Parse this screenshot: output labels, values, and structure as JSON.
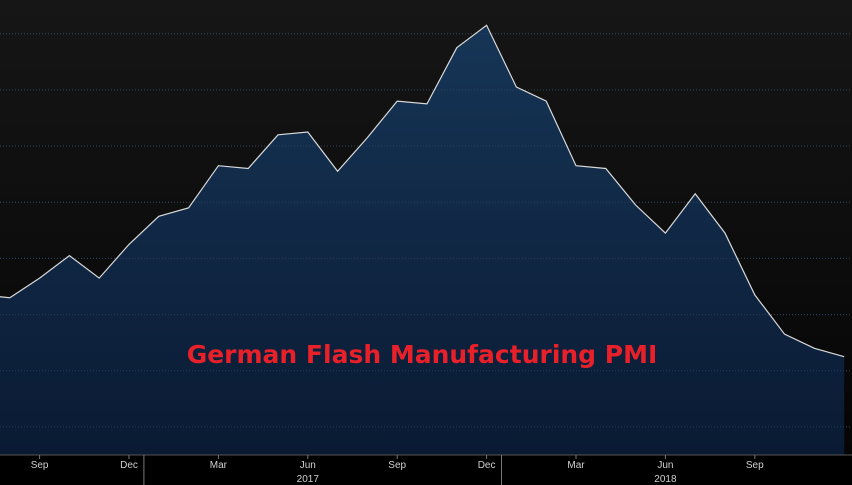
{
  "chart_data": {
    "type": "area",
    "title": "German Flash Manufacturing PMI",
    "xlabel": "",
    "ylabel": "",
    "x_ticks": [
      "Sep",
      "Dec",
      "Mar",
      "Jun",
      "Sep",
      "Dec",
      "Mar",
      "Jun",
      "Sep"
    ],
    "year_labels": [
      "2017",
      "2018"
    ],
    "series": [
      {
        "x": [
          "2016-07",
          "2016-08",
          "2016-09",
          "2016-10",
          "2016-11",
          "2016-12",
          "2017-01",
          "2017-02",
          "2017-03",
          "2017-04",
          "2017-05",
          "2017-06",
          "2017-07",
          "2017-08",
          "2017-09",
          "2017-10",
          "2017-11",
          "2017-12",
          "2018-01",
          "2018-02",
          "2018-03",
          "2018-04",
          "2018-05",
          "2018-06",
          "2018-07",
          "2018-08",
          "2018-09",
          "2018-10",
          "2018-11",
          "2018-12"
        ],
        "values": [
          53.7,
          53.6,
          54.3,
          55.1,
          54.3,
          55.5,
          56.5,
          56.8,
          58.3,
          58.2,
          59.4,
          59.5,
          58.1,
          59.3,
          60.6,
          60.5,
          62.5,
          63.3,
          61.1,
          60.6,
          58.3,
          58.2,
          56.9,
          55.9,
          57.3,
          55.9,
          53.7,
          52.3,
          51.8,
          51.5
        ]
      }
    ],
    "colors": {
      "background_top": "#161616",
      "background_bottom": "#050505",
      "area_top": "#163556",
      "area_bottom": "#0a1a33",
      "line": "#d9d9d9",
      "title": "#e8202a"
    },
    "grid": true
  }
}
